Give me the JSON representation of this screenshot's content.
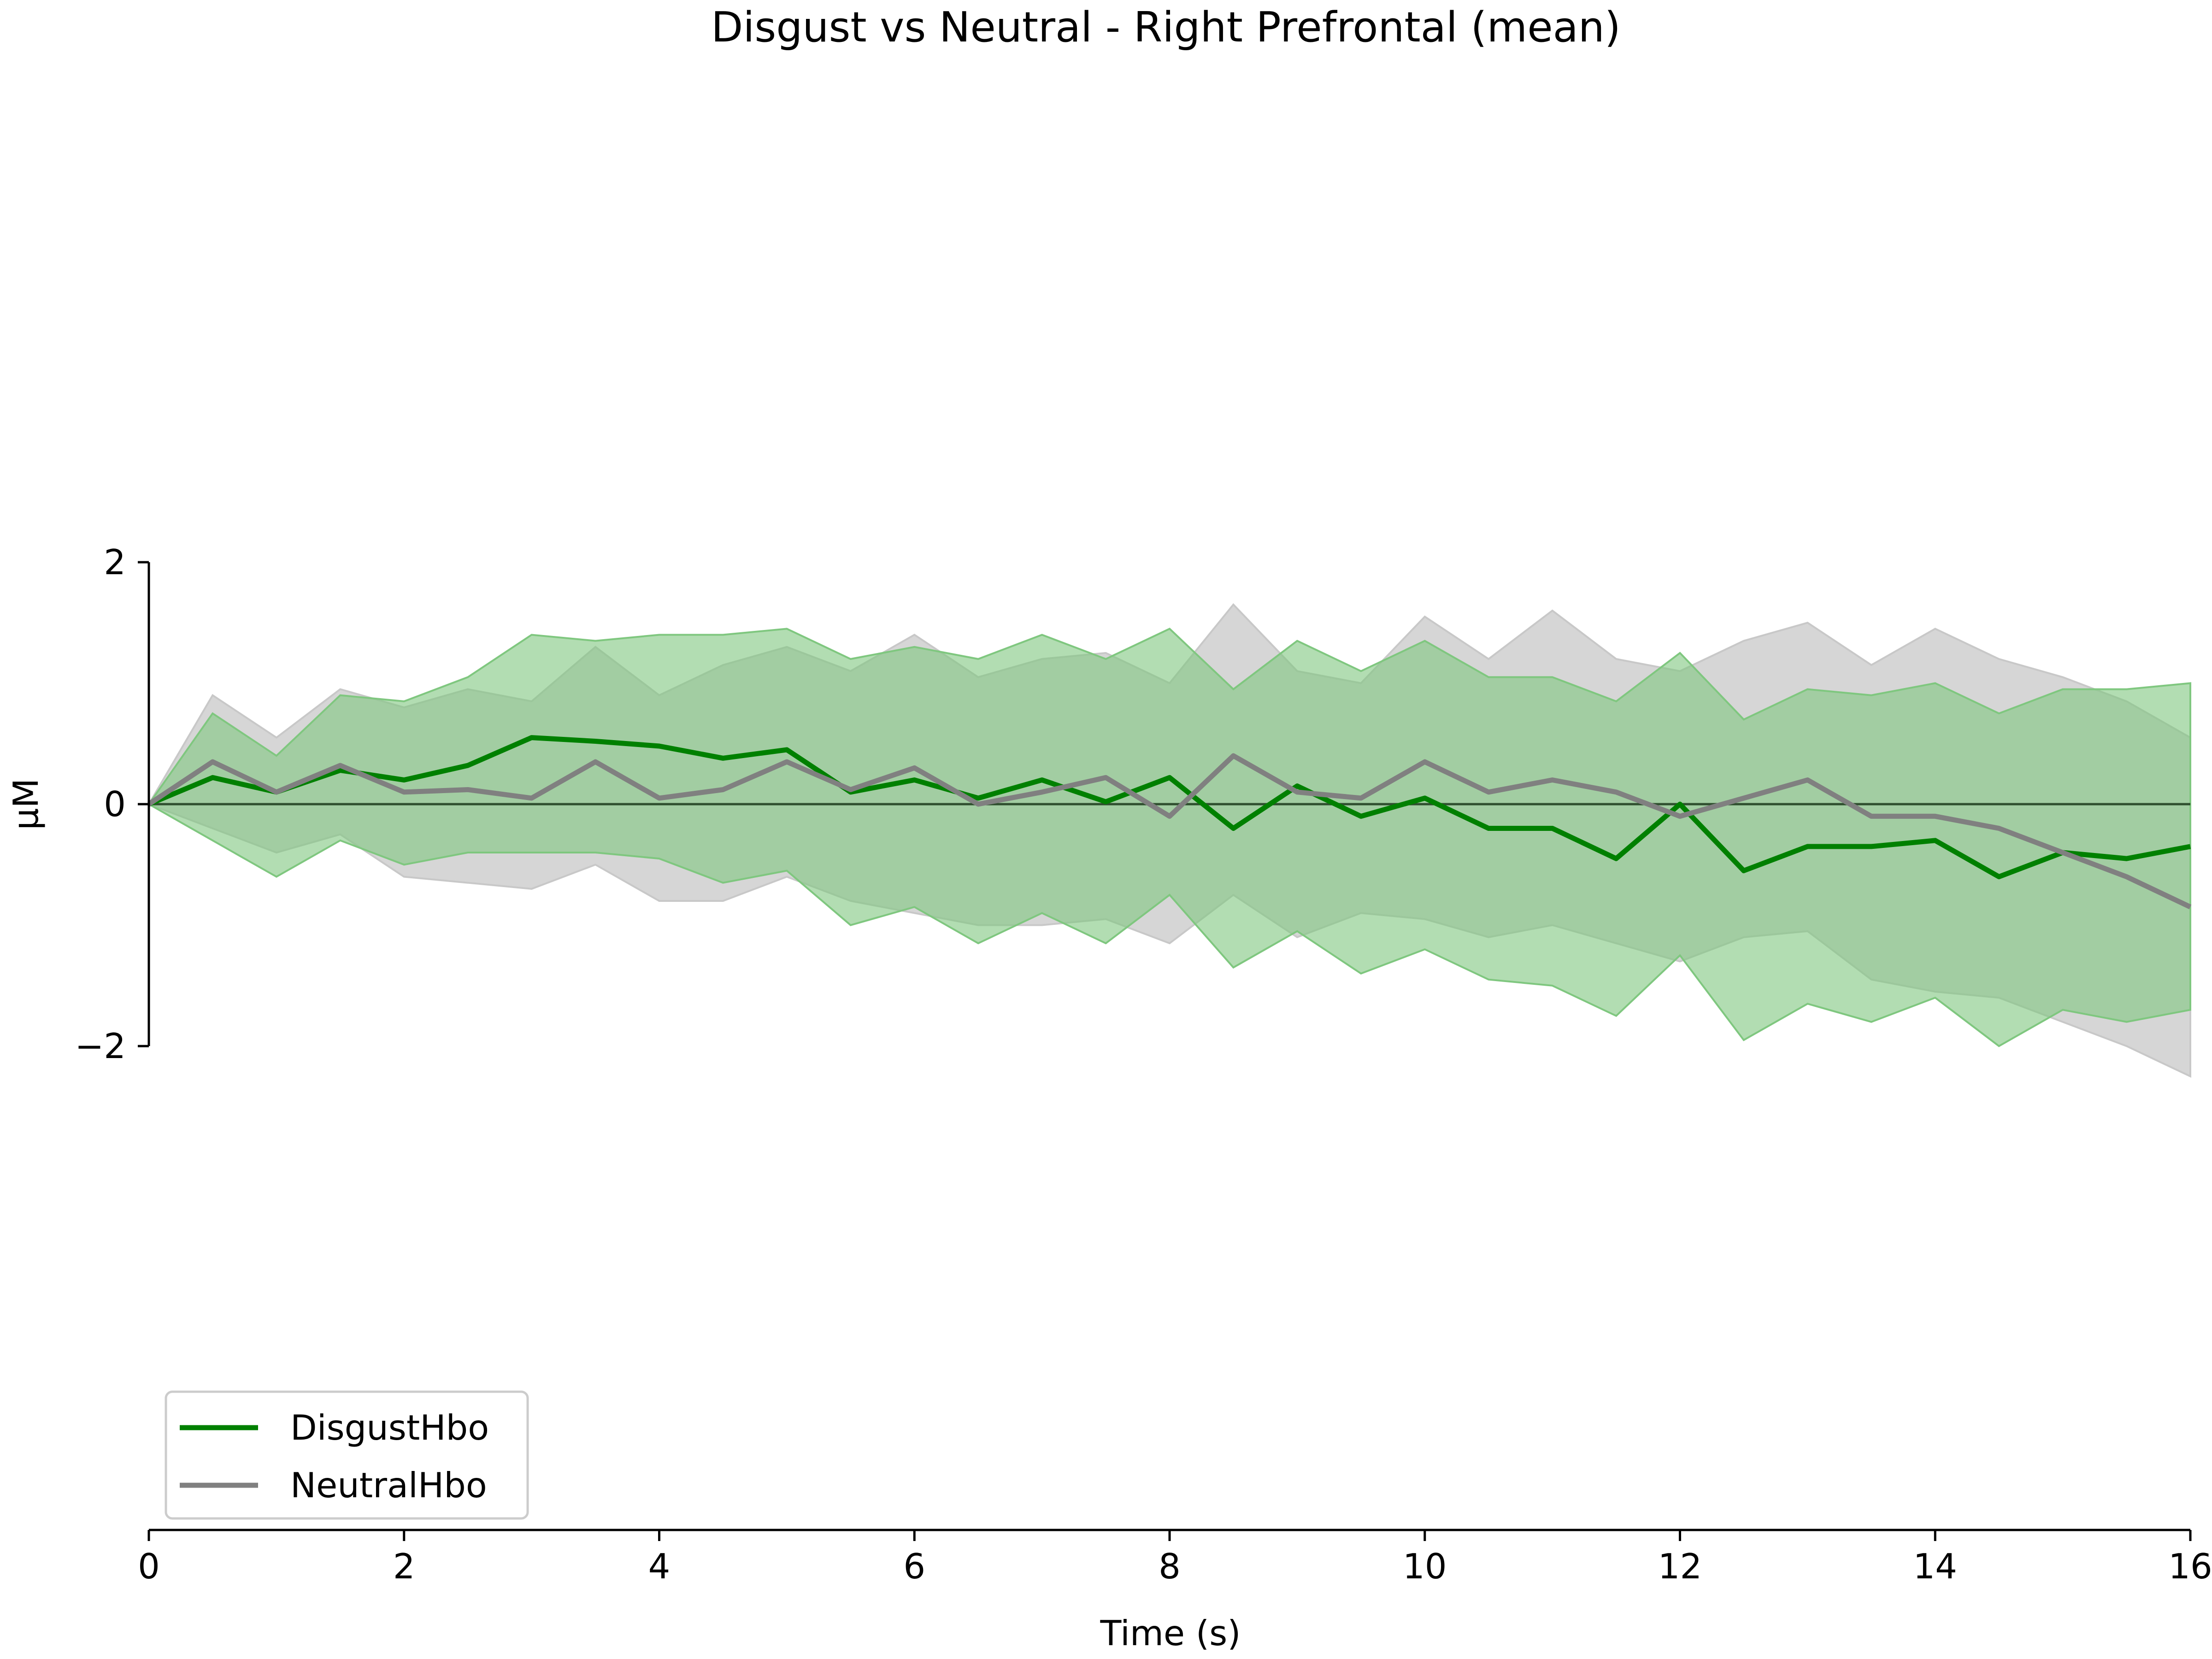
{
  "chart_data": {
    "type": "line",
    "title": "Disgust vs Neutral - Right Prefrontal (mean)",
    "xlabel": "Time (s)",
    "ylabel": "µM",
    "xlim": [
      0,
      16
    ],
    "ylim": [
      -6,
      6
    ],
    "y_spine_range": [
      -2,
      2
    ],
    "xticks": [
      0,
      2,
      4,
      6,
      8,
      10,
      12,
      14,
      16
    ],
    "yticks": [
      -2,
      0,
      2
    ],
    "zero_line": true,
    "grid": false,
    "legend_position": "bottom-left",
    "series": [
      {
        "name": "DisgustHbo",
        "color": "#008000",
        "band_color": "#7fc77f",
        "x": [
          0,
          0.5,
          1,
          1.5,
          2,
          2.5,
          3,
          3.5,
          4,
          4.5,
          5,
          5.5,
          6,
          6.5,
          7,
          7.5,
          8,
          8.5,
          9,
          9.5,
          10,
          10.5,
          11,
          11.5,
          12,
          12.5,
          13,
          13.5,
          14,
          14.5,
          15,
          15.5,
          16
        ],
        "y": [
          0,
          0.22,
          0.1,
          0.28,
          0.2,
          0.32,
          0.55,
          0.52,
          0.48,
          0.38,
          0.45,
          0.1,
          0.2,
          0.05,
          0.2,
          0.02,
          0.22,
          -0.2,
          0.15,
          -0.1,
          0.05,
          -0.2,
          -0.2,
          -0.45,
          0.0,
          -0.55,
          -0.35,
          -0.35,
          -0.3,
          -0.6,
          -0.4,
          -0.45,
          -0.35
        ],
        "lower": [
          0,
          -0.3,
          -0.6,
          -0.3,
          -0.5,
          -0.4,
          -0.4,
          -0.4,
          -0.45,
          -0.65,
          -0.55,
          -1.0,
          -0.85,
          -1.15,
          -0.9,
          -1.15,
          -0.75,
          -1.35,
          -1.05,
          -1.4,
          -1.2,
          -1.45,
          -1.5,
          -1.75,
          -1.25,
          -1.95,
          -1.65,
          -1.8,
          -1.6,
          -2.0,
          -1.7,
          -1.8,
          -1.7
        ],
        "upper": [
          0,
          0.75,
          0.4,
          0.9,
          0.85,
          1.05,
          1.4,
          1.35,
          1.4,
          1.4,
          1.45,
          1.2,
          1.3,
          1.2,
          1.4,
          1.2,
          1.45,
          0.95,
          1.35,
          1.1,
          1.35,
          1.05,
          1.05,
          0.85,
          1.25,
          0.7,
          0.95,
          0.9,
          1.0,
          0.75,
          0.95,
          0.95,
          1.0
        ]
      },
      {
        "name": "NeutralHbo",
        "color": "#808080",
        "band_color": "#c8c8c8",
        "x": [
          0,
          0.5,
          1,
          1.5,
          2,
          2.5,
          3,
          3.5,
          4,
          4.5,
          5,
          5.5,
          6,
          6.5,
          7,
          7.5,
          8,
          8.5,
          9,
          9.5,
          10,
          10.5,
          11,
          11.5,
          12,
          12.5,
          13,
          13.5,
          14,
          14.5,
          15,
          15.5,
          16
        ],
        "y": [
          0,
          0.35,
          0.1,
          0.32,
          0.1,
          0.12,
          0.05,
          0.35,
          0.05,
          0.12,
          0.35,
          0.12,
          0.3,
          0.0,
          0.1,
          0.22,
          -0.1,
          0.4,
          0.1,
          0.05,
          0.35,
          0.1,
          0.2,
          0.1,
          -0.1,
          0.05,
          0.2,
          -0.1,
          -0.1,
          -0.2,
          -0.4,
          -0.6,
          -0.85
        ],
        "lower": [
          0,
          -0.2,
          -0.4,
          -0.25,
          -0.6,
          -0.65,
          -0.7,
          -0.5,
          -0.8,
          -0.8,
          -0.6,
          -0.8,
          -0.9,
          -1.0,
          -1.0,
          -0.95,
          -1.15,
          -0.75,
          -1.1,
          -0.9,
          -0.95,
          -1.1,
          -1.0,
          -1.15,
          -1.3,
          -1.1,
          -1.05,
          -1.45,
          -1.55,
          -1.6,
          -1.8,
          -2.0,
          -2.25
        ],
        "upper": [
          0,
          0.9,
          0.55,
          0.95,
          0.8,
          0.95,
          0.85,
          1.3,
          0.9,
          1.15,
          1.3,
          1.1,
          1.4,
          1.05,
          1.2,
          1.25,
          1.0,
          1.65,
          1.1,
          1.0,
          1.55,
          1.2,
          1.6,
          1.2,
          1.1,
          1.35,
          1.5,
          1.15,
          1.45,
          1.2,
          1.05,
          0.85,
          0.55
        ]
      }
    ]
  }
}
